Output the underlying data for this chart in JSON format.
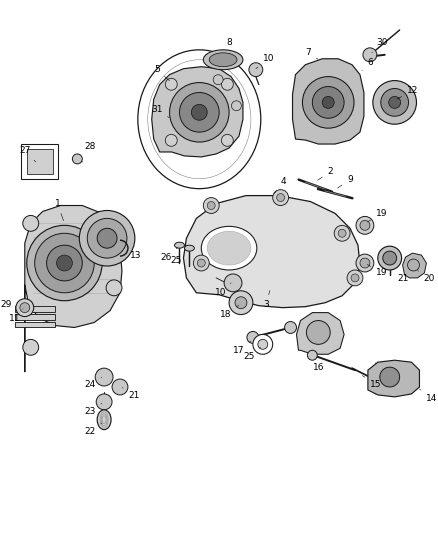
{
  "bg_color": "#ffffff",
  "fig_width": 4.38,
  "fig_height": 5.33,
  "dpi": 100,
  "label_fontsize": 6.5,
  "line_color": "#1a1a1a",
  "line_width": 0.7,
  "gray_light": "#d0d0d0",
  "gray_med": "#b0b0b0",
  "gray_dark": "#888888",
  "gray_fill": "#c8c8c8"
}
